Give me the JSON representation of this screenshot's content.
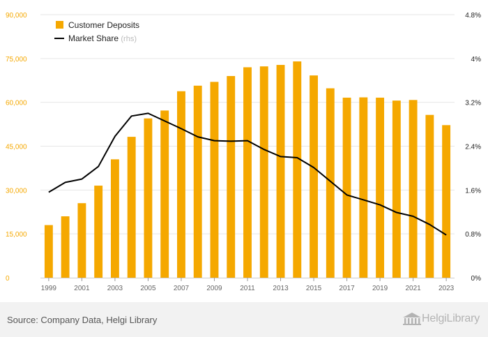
{
  "chart_data": {
    "type": "bar+line",
    "title": "",
    "categories": [
      "1999",
      "2000",
      "2001",
      "2002",
      "2003",
      "2004",
      "2005",
      "2006",
      "2007",
      "2008",
      "2009",
      "2010",
      "2011",
      "2012",
      "2013",
      "2014",
      "2015",
      "2016",
      "2017",
      "2018",
      "2019",
      "2020",
      "2021",
      "2022",
      "2023"
    ],
    "x_tick_labels": [
      "1999",
      "2001",
      "2003",
      "2005",
      "2007",
      "2009",
      "2011",
      "2013",
      "2015",
      "2017",
      "2019",
      "2021",
      "2023"
    ],
    "series": [
      {
        "name": "Customer Deposits",
        "type": "bar",
        "axis": "left",
        "color": "#f5a800",
        "values": [
          18000,
          21000,
          25500,
          31500,
          40500,
          48200,
          54500,
          57200,
          63800,
          65700,
          67000,
          69000,
          72000,
          72300,
          72800,
          74000,
          69200,
          64800,
          61600,
          61700,
          61600,
          60600,
          60800,
          55700,
          52200
        ]
      },
      {
        "name": "Market Share",
        "suffix": "(rhs)",
        "type": "line",
        "axis": "right",
        "color": "#000000",
        "values": [
          1.56,
          1.74,
          1.8,
          2.03,
          2.58,
          2.95,
          3.0,
          2.86,
          2.72,
          2.57,
          2.5,
          2.49,
          2.5,
          2.34,
          2.21,
          2.19,
          2.01,
          1.76,
          1.51,
          1.42,
          1.33,
          1.19,
          1.12,
          0.97,
          0.78
        ]
      }
    ],
    "y_left": {
      "min": 0,
      "max": 90000,
      "ticks": [
        "0",
        "15,000",
        "30,000",
        "45,000",
        "60,000",
        "75,000",
        "90,000"
      ],
      "tick_values": [
        0,
        15000,
        30000,
        45000,
        60000,
        75000,
        90000
      ],
      "color": "#f5a800"
    },
    "y_right": {
      "min": 0,
      "max": 4.8,
      "ticks": [
        "0%",
        "0.8%",
        "1.6%",
        "2.4%",
        "3.2%",
        "4%",
        "4.8%"
      ],
      "tick_values": [
        0,
        0.8,
        1.6,
        2.4,
        3.2,
        4.0,
        4.8
      ]
    },
    "legend_position": "top-left",
    "grid": true
  },
  "footer": {
    "source": "Source: Company Data, Helgi Library",
    "logo_text": "HelgiLibrary"
  }
}
